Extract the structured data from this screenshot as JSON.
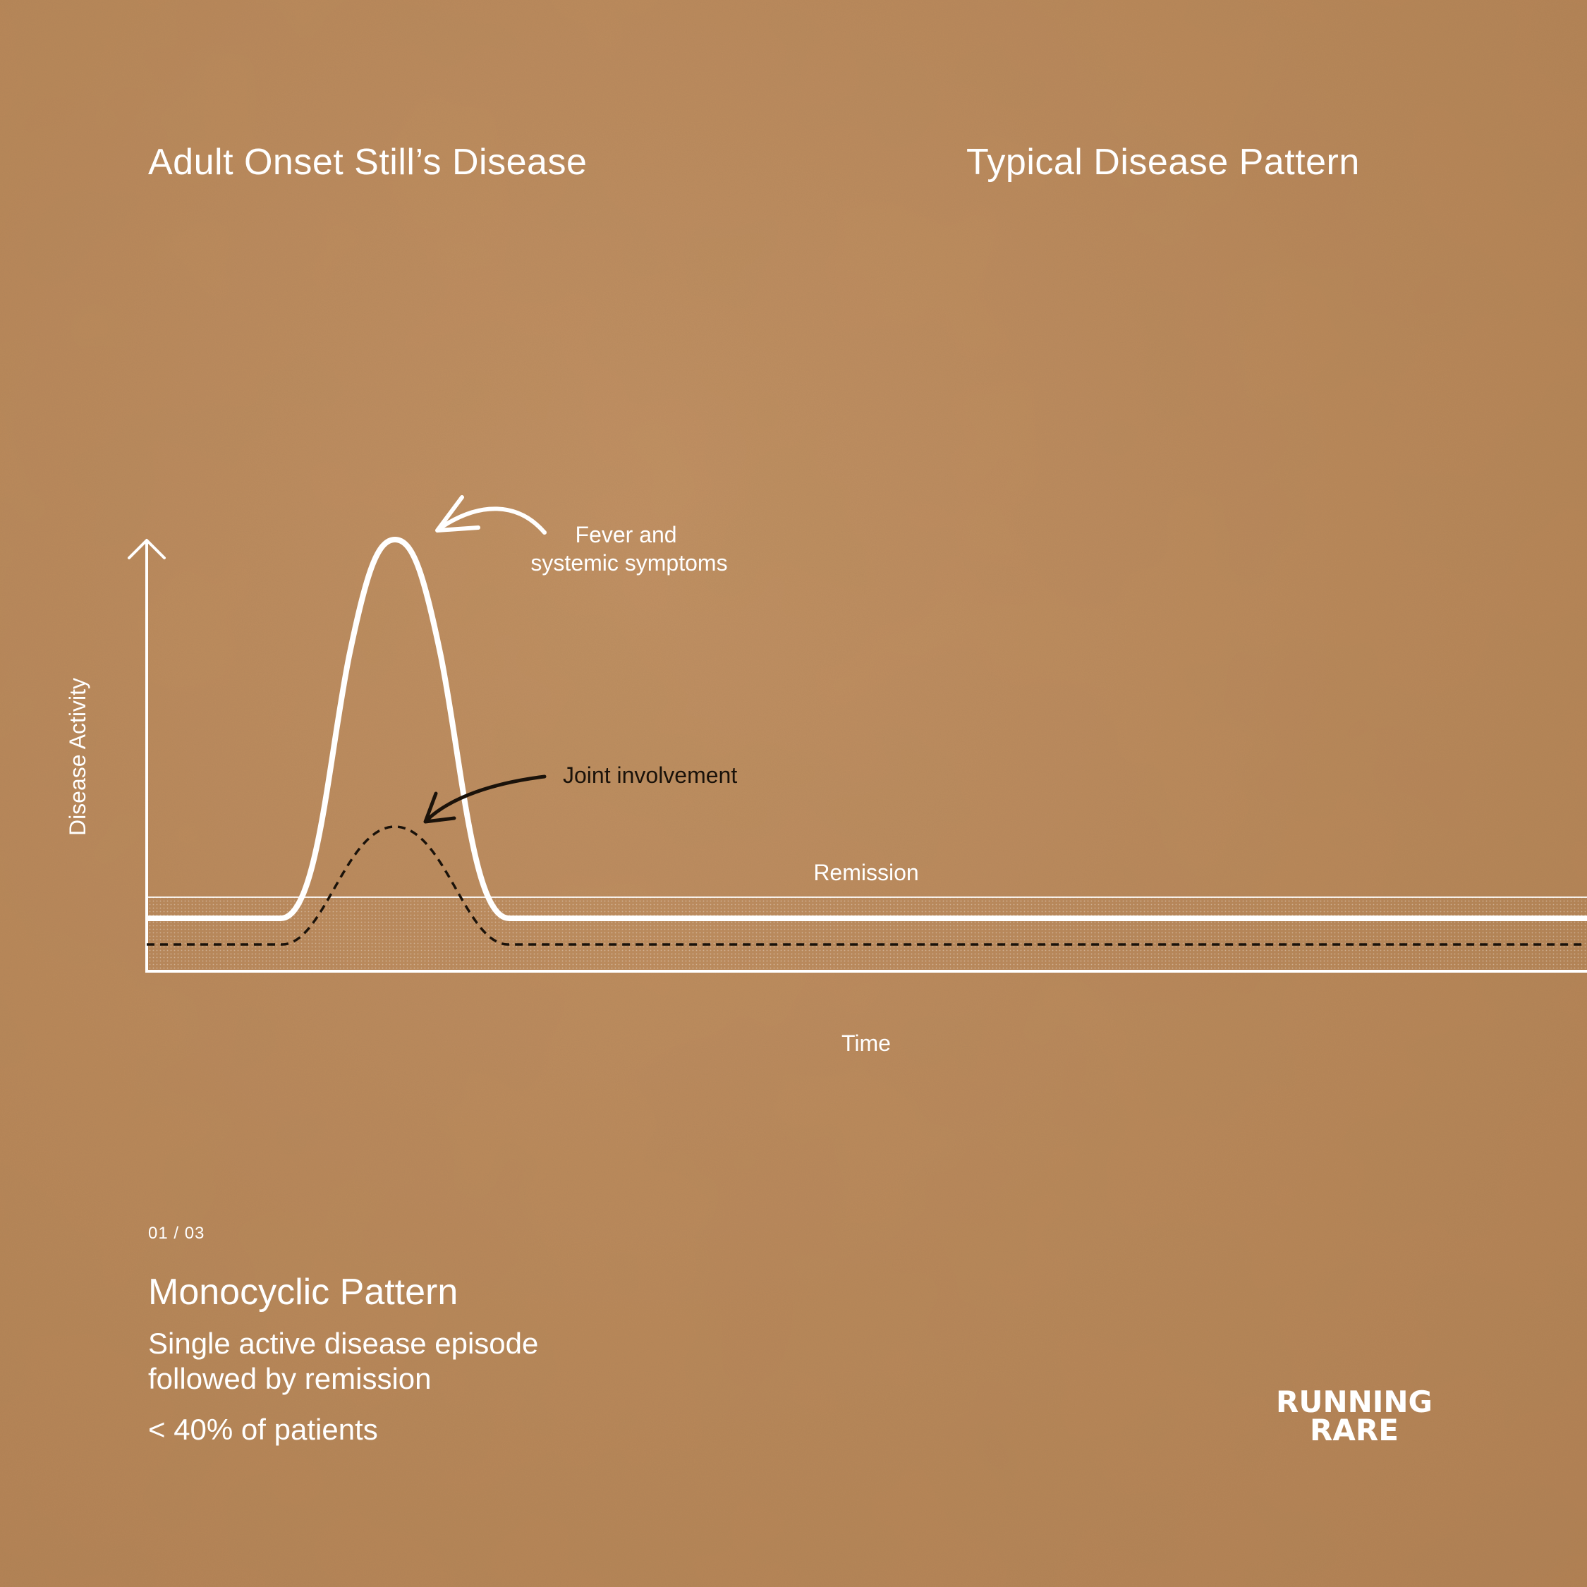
{
  "header": {
    "title": "Adult Onset Still’s Disease",
    "subtitle": "Typical Disease Pattern"
  },
  "chart_data": {
    "type": "line",
    "ylabel": "Disease Activity",
    "xlabel": "Time",
    "band_label": "Remission",
    "series": [
      {
        "name": "Fever and systemic symptoms",
        "style": "solid",
        "color": "#ffffff",
        "shape": "single-peak"
      },
      {
        "name": "Joint involvement",
        "style": "dashed",
        "color": "#1a120a",
        "shape": "single-peak"
      }
    ],
    "annotations": [
      {
        "series": "Fever and systemic symptoms",
        "lines": [
          "Fever and",
          "systemic symptoms"
        ],
        "color": "#ffffff"
      },
      {
        "series": "Joint involvement",
        "lines": [
          "Joint involvement"
        ],
        "color": "#1a120a"
      }
    ]
  },
  "pattern": {
    "page": "01 / 03",
    "title": "Monocyclic Pattern",
    "description": [
      "Single active disease episode",
      "followed by remission"
    ],
    "stat": "< 40% of patients"
  },
  "brand": {
    "line1": "RUNNING",
    "line2": "RARE"
  },
  "colors": {
    "background": "#bd8a5a",
    "foreground": "#ffffff",
    "ink": "#1a120a"
  }
}
